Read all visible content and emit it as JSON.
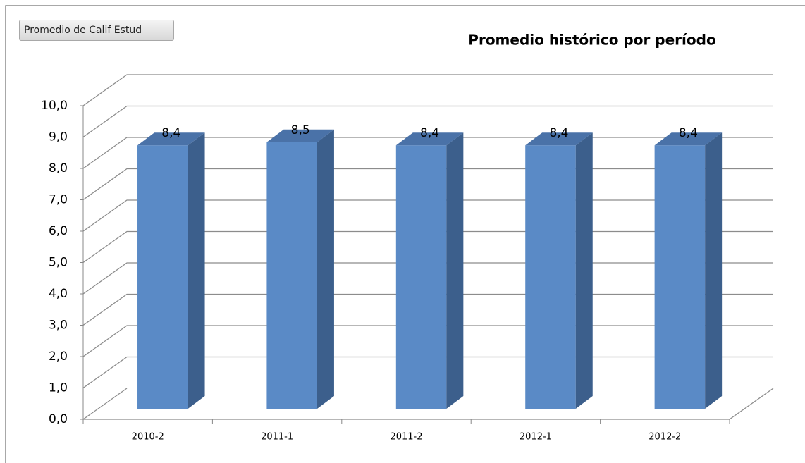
{
  "button": "Promedio de Calif Estud",
  "chart_data": {
    "type": "bar3d",
    "title": "Promedio histórico por período",
    "categories": [
      "2010-2",
      "2011-1",
      "2011-2",
      "2012-1",
      "2012-2"
    ],
    "values": [
      8.4,
      8.5,
      8.4,
      8.4,
      8.4
    ],
    "value_labels": [
      "8,4",
      "8,5",
      "8,4",
      "8,4",
      "8,4"
    ],
    "color": "#5a8ac6",
    "ylim": [
      0,
      10
    ],
    "yticks": [
      {
        "value": 0,
        "label": "0,0"
      },
      {
        "value": 1,
        "label": "1,0"
      },
      {
        "value": 2,
        "label": "2,0"
      },
      {
        "value": 3,
        "label": "3,0"
      },
      {
        "value": 4,
        "label": "4,0"
      },
      {
        "value": 5,
        "label": "5,0"
      },
      {
        "value": 6,
        "label": "6,0"
      },
      {
        "value": 7,
        "label": "7,0"
      },
      {
        "value": 8,
        "label": "8,0"
      },
      {
        "value": 9,
        "label": "9,0"
      },
      {
        "value": 10,
        "label": "10,0"
      }
    ],
    "grid": true
  }
}
